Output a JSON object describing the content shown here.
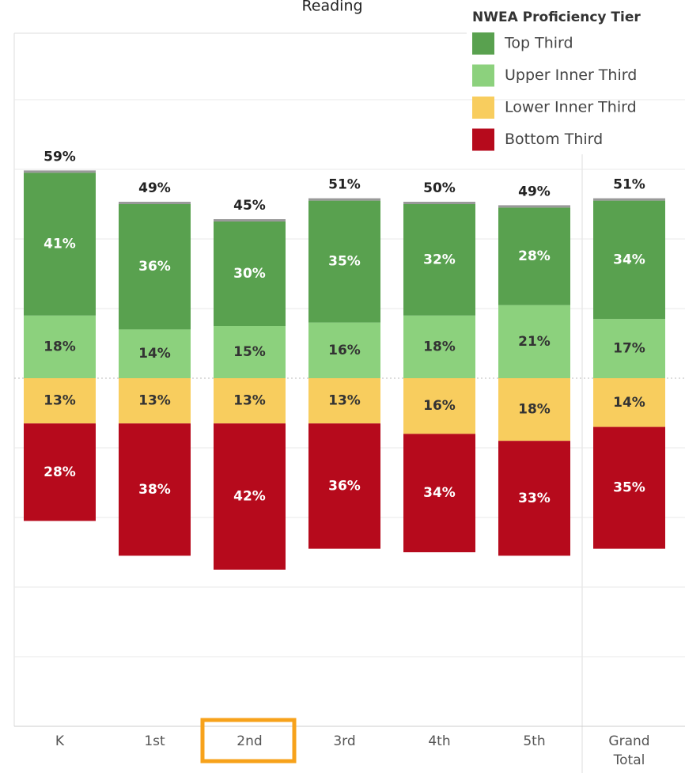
{
  "chart_data": {
    "type": "diverging_stacked_bar",
    "title": "Reading",
    "legend_title": "NWEA Proficiency Tier",
    "legend": "top-right",
    "categories": [
      "K",
      "1st",
      "2nd",
      "3rd",
      "4th",
      "5th",
      "Grand Total"
    ],
    "series": [
      {
        "name": "Top Third",
        "color": "#59a14f",
        "side": "up",
        "values": [
          41,
          36,
          30,
          35,
          32,
          28,
          34
        ],
        "value_labels": [
          "41%",
          "36%",
          "30%",
          "35%",
          "32%",
          "28%",
          "34%"
        ]
      },
      {
        "name": "Upper Inner Third",
        "color": "#8cd17d",
        "side": "up",
        "values": [
          18,
          14,
          15,
          16,
          18,
          21,
          17
        ],
        "value_labels": [
          "18%",
          "14%",
          "15%",
          "16%",
          "18%",
          "21%",
          "17%"
        ]
      },
      {
        "name": "Lower Inner Third",
        "color": "#f8cd5e",
        "side": "down",
        "values": [
          13,
          13,
          13,
          13,
          16,
          18,
          14
        ],
        "value_labels": [
          "13%",
          "13%",
          "13%",
          "13%",
          "16%",
          "18%",
          "14%"
        ]
      },
      {
        "name": "Bottom Third",
        "color": "#b60a1c",
        "side": "down",
        "values": [
          28,
          38,
          42,
          36,
          34,
          33,
          35
        ],
        "value_labels": [
          "28%",
          "38%",
          "42%",
          "36%",
          "34%",
          "33%",
          "35%"
        ]
      }
    ],
    "totals": {
      "values": [
        59,
        49,
        45,
        51,
        50,
        49,
        51
      ],
      "value_labels": [
        "59%",
        "49%",
        "45%",
        "51%",
        "50%",
        "49%",
        "51%"
      ]
    },
    "ylim": [
      -100,
      100
    ],
    "yticks": [
      -80,
      -60,
      -40,
      -20,
      0,
      20,
      40,
      60,
      80
    ],
    "grid": true
  }
}
